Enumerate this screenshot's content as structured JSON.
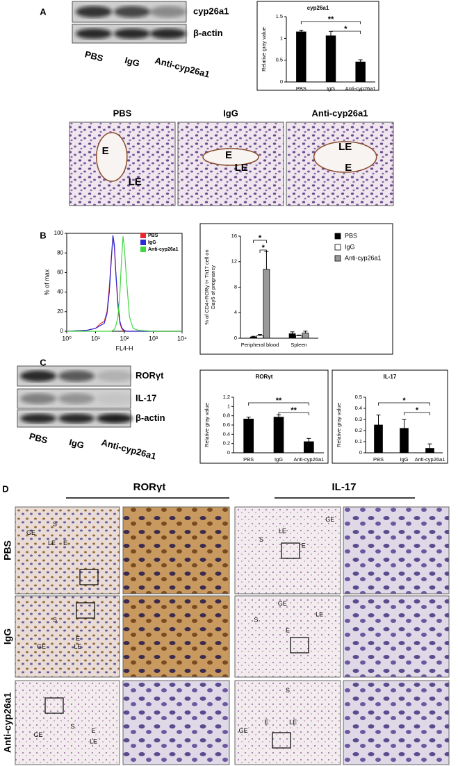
{
  "figure": {
    "panel_labels": [
      "A",
      "B",
      "C",
      "D"
    ],
    "blot_a": {
      "bands": [
        "cyp26a1",
        "β-actin"
      ],
      "lanes": [
        "PBS",
        "IgG",
        "Anti-cyp26a1"
      ]
    },
    "histology_a": {
      "columns": [
        "PBS",
        "IgG",
        "Anti-cyp26a1"
      ],
      "labels": [
        [
          "E",
          "LE"
        ],
        [
          "E",
          "LE"
        ],
        [
          "LE",
          "E"
        ]
      ]
    },
    "blot_c": {
      "bands": [
        "RORγt",
        "IL-17",
        "β-actin"
      ],
      "lanes": [
        "PBS",
        "IgG",
        "Anti-cyp26a1"
      ]
    },
    "panel_d": {
      "headings": [
        "RORγt",
        "IL-17"
      ],
      "rows": [
        "PBS",
        "IgG",
        "Anti-cyp26a1"
      ],
      "labels": [
        [
          [
            "S",
            "GE",
            "LE",
            "E"
          ],
          [
            "GE",
            "LE",
            "S",
            "E"
          ]
        ],
        [
          [
            "S",
            "E",
            "GE",
            "LE"
          ],
          [
            "GE",
            "LE",
            "S",
            "E"
          ]
        ],
        [
          [
            "S",
            "GE",
            "E",
            "LE"
          ],
          [
            "S",
            "E",
            "LE",
            "GE"
          ]
        ]
      ]
    }
  },
  "chart_data": [
    {
      "type": "bar",
      "title": "cyp26a1",
      "ylabel": [
        "Relative gray value"
      ],
      "categories": [
        "PBS",
        "IgG",
        "Anti-cyp26a1"
      ],
      "values": [
        1.15,
        1.06,
        0.46
      ],
      "errors": [
        0.04,
        0.1,
        0.05
      ],
      "color": "#000000",
      "ylim": [
        0,
        1.5
      ],
      "yticks": [
        0,
        0.5,
        1,
        1.5
      ],
      "annotations": [
        "**",
        "*"
      ]
    },
    {
      "type": "line",
      "xlabel": "FL4-H",
      "ylabel": [
        "% of max"
      ],
      "xscale": "log",
      "x": [
        1,
        5,
        10,
        15,
        20,
        25,
        30,
        35,
        40,
        45,
        50,
        60,
        70,
        80,
        90,
        100,
        120,
        150,
        200,
        300,
        1000,
        10000
      ],
      "series": [
        {
          "name": "PBS",
          "color": "#e8282e",
          "values": [
            0,
            1,
            3,
            8,
            10,
            20,
            45,
            75,
            97,
            85,
            60,
            25,
            8,
            3,
            1,
            0.5,
            0,
            0,
            0,
            0,
            0,
            0
          ]
        },
        {
          "name": "IgG",
          "color": "#2a2ad8",
          "values": [
            0,
            1,
            3,
            6,
            8,
            18,
            40,
            72,
            98,
            88,
            62,
            28,
            10,
            4,
            2,
            1,
            0,
            0,
            0,
            0,
            0,
            0
          ]
        },
        {
          "name": "Anti-cyp26a1",
          "color": "#3fd83f",
          "values": [
            0,
            0,
            0,
            0,
            0,
            0,
            0,
            0,
            1,
            2,
            5,
            15,
            40,
            75,
            97,
            85,
            50,
            15,
            3,
            1,
            0,
            0
          ]
        }
      ],
      "xlim": [
        1,
        10000
      ],
      "xticks": [
        {
          "value": 1,
          "label": "10⁰"
        },
        {
          "value": 10,
          "label": "10¹"
        },
        {
          "value": 100,
          "label": "10²"
        },
        {
          "value": 1000,
          "label": "10³"
        },
        {
          "value": 10000,
          "label": "10⁴"
        }
      ],
      "ylim": [
        0,
        100
      ],
      "yticks": [
        0,
        20,
        40,
        60,
        80,
        100
      ]
    },
    {
      "type": "bar",
      "ylabel": [
        "% of CD4+RORγ t+ Th17 cell on",
        "Day5 of pregnancy"
      ],
      "categories": [
        "Peripheral blood",
        "Spleen"
      ],
      "series": [
        {
          "name": "PBS",
          "color": "#000000",
          "values": [
            0.2,
            0.7
          ],
          "errors": [
            0.1,
            0.3
          ]
        },
        {
          "name": "IgG",
          "color": "#ffffff",
          "values": [
            0.4,
            0.4
          ],
          "errors": [
            0.2,
            0.1
          ]
        },
        {
          "name": "Anti-cyp26a1",
          "color": "#999999",
          "values": [
            10.8,
            0.8
          ],
          "errors": [
            2.8,
            0.3
          ]
        }
      ],
      "ylim": [
        0,
        16
      ],
      "yticks": [
        0,
        4,
        8,
        12,
        16
      ],
      "annotations": [
        "*",
        "*"
      ]
    },
    {
      "type": "bar",
      "title": "RORγt",
      "ylabel": [
        "Relative gray value"
      ],
      "categories": [
        "PBS",
        "IgG",
        "Anti-cyp26a1"
      ],
      "values": [
        0.73,
        0.77,
        0.24
      ],
      "errors": [
        0.04,
        0.05,
        0.07
      ],
      "color": "#000000",
      "ylim": [
        0,
        1.2
      ],
      "yticks": [
        0,
        0.2,
        0.4,
        0.6,
        0.8,
        1,
        1.2
      ],
      "annotations": [
        "**",
        "**"
      ]
    },
    {
      "type": "bar",
      "title": "IL-17",
      "ylabel": [
        "Relative gray value"
      ],
      "categories": [
        "PBS",
        "IgG",
        "Anti-cyp26a1"
      ],
      "values": [
        0.25,
        0.22,
        0.04
      ],
      "errors": [
        0.09,
        0.08,
        0.04
      ],
      "color": "#000000",
      "ylim": [
        0,
        0.5
      ],
      "yticks": [
        0,
        0.1,
        0.2,
        0.3,
        0.4,
        0.5
      ],
      "annotations": [
        "*",
        "*"
      ]
    }
  ]
}
